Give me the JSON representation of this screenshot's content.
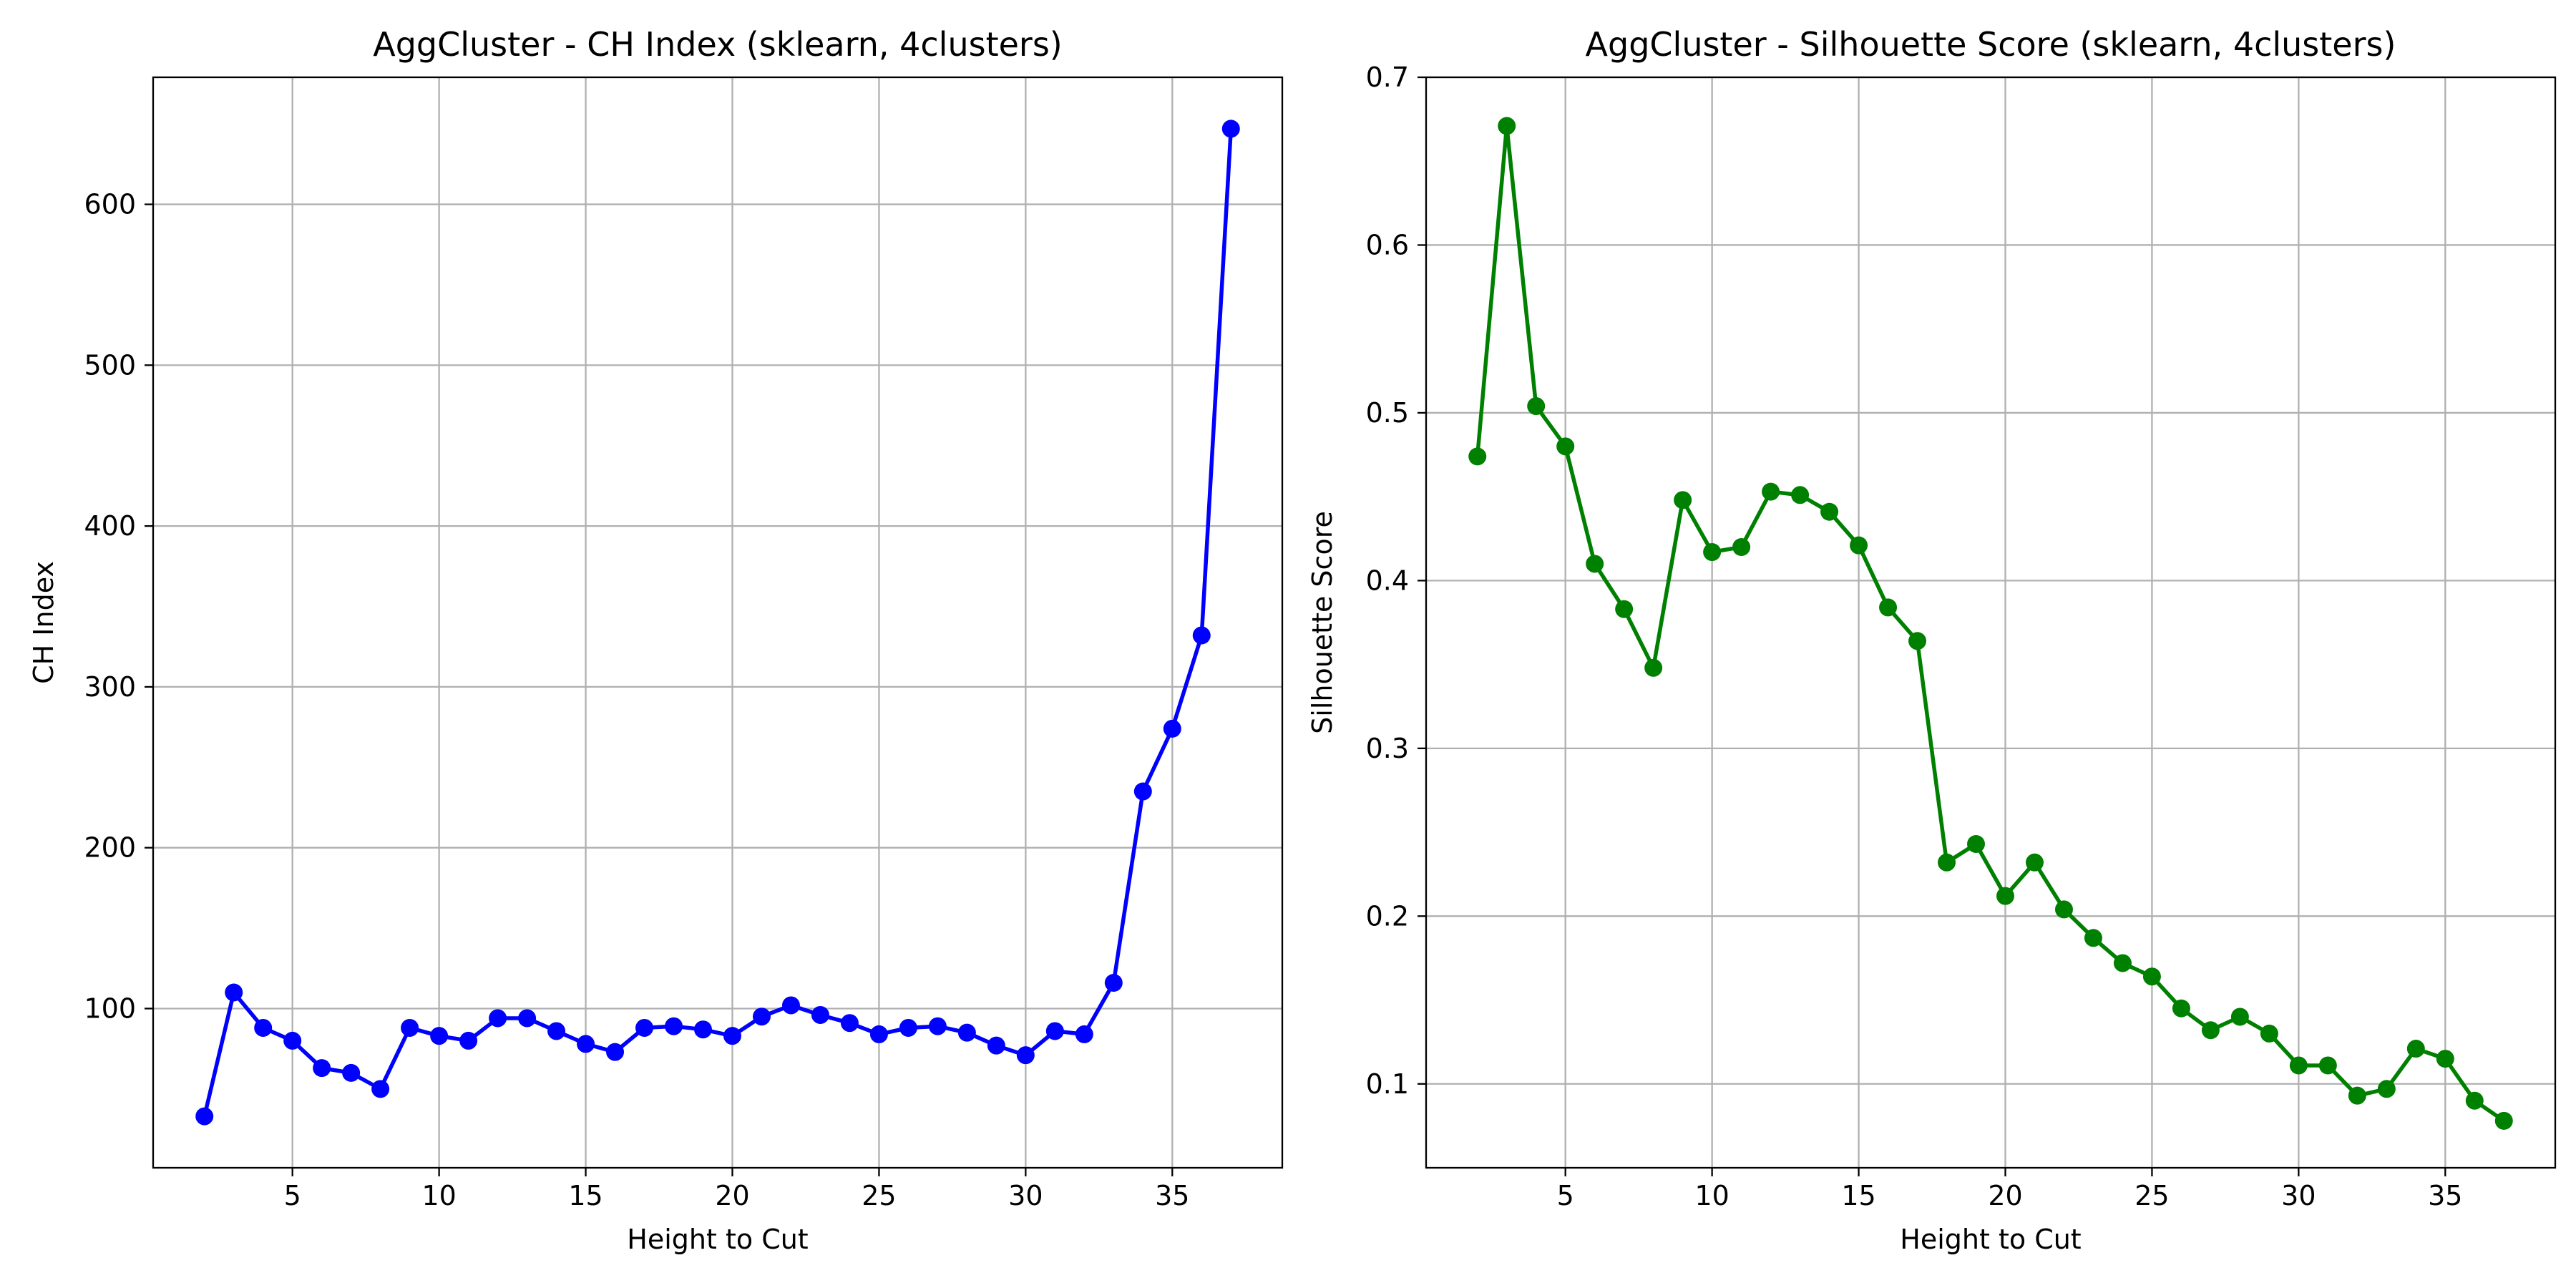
{
  "chart_data": [
    {
      "type": "line",
      "title": "AggCluster - CH Index (sklearn, 4clusters)",
      "xlabel": "Height to Cut",
      "ylabel": "CH Index",
      "xlim": [
        0.25,
        38.75
      ],
      "ylim": [
        1,
        679
      ],
      "xticks": [
        5,
        10,
        15,
        20,
        25,
        30,
        35
      ],
      "yticks": [
        100,
        200,
        300,
        400,
        500,
        600
      ],
      "grid": true,
      "color": "#0000ff",
      "marker": "circle",
      "series": [
        {
          "x": [
            2,
            3,
            4,
            5,
            6,
            7,
            8,
            9,
            10,
            11,
            12,
            13,
            14,
            15,
            16,
            17,
            18,
            19,
            20,
            21,
            22,
            23,
            24,
            25,
            26,
            27,
            28,
            29,
            30,
            31,
            32,
            33,
            34,
            35,
            36,
            37
          ],
          "y": [
            33,
            110,
            88,
            80,
            63,
            60,
            50,
            88,
            83,
            80,
            94,
            94,
            86,
            78,
            73,
            88,
            89,
            87,
            83,
            95,
            102,
            96,
            91,
            84,
            88,
            89,
            85,
            77,
            71,
            86,
            84,
            116,
            235,
            274,
            332,
            647
          ]
        }
      ]
    },
    {
      "type": "line",
      "title": "AggCluster - Silhouette Score (sklearn, 4clusters)",
      "xlabel": "Height to Cut",
      "ylabel": "Silhouette Score",
      "xlim": [
        0.25,
        38.75
      ],
      "ylim": [
        0.05,
        0.7
      ],
      "xticks": [
        5,
        10,
        15,
        20,
        25,
        30,
        35
      ],
      "yticks": [
        0.1,
        0.2,
        0.3,
        0.4,
        0.5,
        0.6,
        0.7
      ],
      "grid": true,
      "color": "#008000",
      "marker": "circle",
      "series": [
        {
          "x": [
            2,
            3,
            4,
            5,
            6,
            7,
            8,
            9,
            10,
            11,
            12,
            13,
            14,
            15,
            16,
            17,
            18,
            19,
            20,
            21,
            22,
            23,
            24,
            25,
            26,
            27,
            28,
            29,
            30,
            31,
            32,
            33,
            34,
            35,
            36,
            37
          ],
          "y": [
            0.474,
            0.671,
            0.504,
            0.48,
            0.41,
            0.383,
            0.348,
            0.448,
            0.417,
            0.42,
            0.453,
            0.451,
            0.441,
            0.421,
            0.384,
            0.364,
            0.232,
            0.243,
            0.212,
            0.232,
            0.204,
            0.187,
            0.172,
            0.164,
            0.145,
            0.132,
            0.14,
            0.13,
            0.111,
            0.111,
            0.093,
            0.097,
            0.121,
            0.115,
            0.09,
            0.078
          ]
        }
      ]
    }
  ]
}
